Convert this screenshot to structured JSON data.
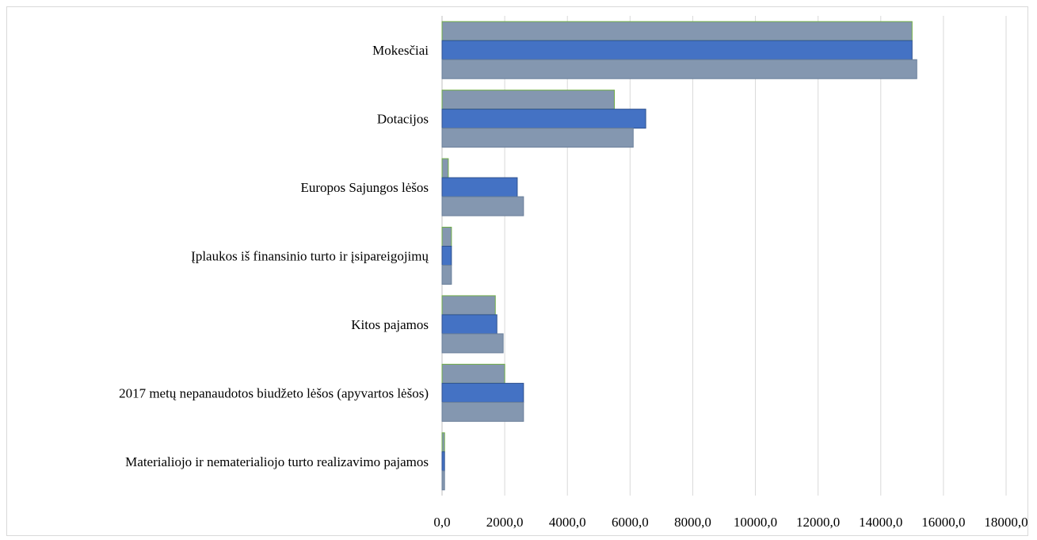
{
  "chart_data": {
    "type": "bar",
    "orientation": "horizontal",
    "title": "",
    "xlabel": "",
    "ylabel": "",
    "xlim": [
      0,
      18000
    ],
    "grid": "vertical",
    "legend": "none",
    "categories": [
      "Mokesčiai",
      "Dotacijos",
      "Europos Sajungos lėšos",
      "Įplaukos iš finansinio turto ir įsipareigojimų",
      "Kitos pajamos",
      "2017 metų nepanaudotos biudžeto lėšos (apyvartos lėšos)",
      "Materialiojo ir nematerialiojo turto realizavimo pajamos"
    ],
    "tick_labels": [
      "0,0",
      "2000,0",
      "4000,0",
      "6000,0",
      "8000,0",
      "10000,0",
      "12000,0",
      "14000,0",
      "16000,0",
      "18000,0"
    ],
    "series": [
      {
        "values": [
          15000,
          5500,
          200,
          300,
          1700,
          2000,
          80
        ],
        "color": "#8497b0",
        "stroke": "#70ad47"
      },
      {
        "values": [
          15000,
          6500,
          2400,
          300,
          1750,
          2600,
          80
        ],
        "color": "#4472c4",
        "stroke": "#2f528f"
      },
      {
        "values": [
          15150,
          6100,
          2600,
          300,
          1950,
          2600,
          80
        ],
        "color": "#8497b0",
        "stroke": "#6a7f9a"
      }
    ]
  }
}
